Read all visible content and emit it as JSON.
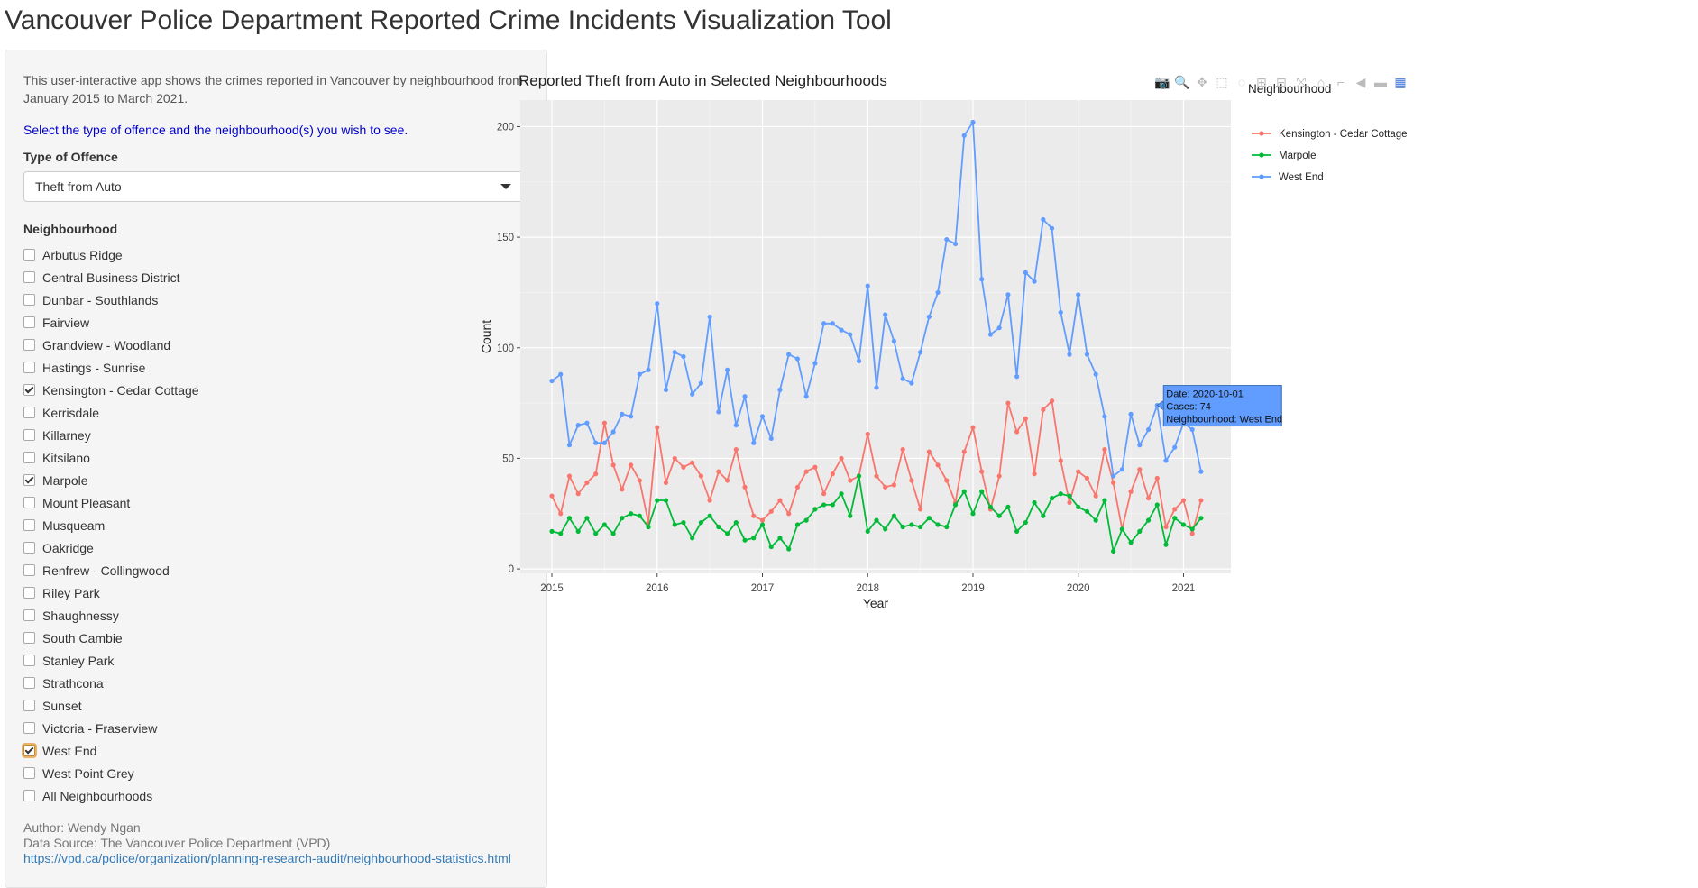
{
  "app": {
    "title": "Vancouver Police Department Reported Crime Incidents Visualization Tool"
  },
  "sidebar": {
    "intro": "This user-interactive app shows the crimes reported in Vancouver by neighbourhood from January 2015 to March 2021.",
    "select_prompt": "Select the type of offence and the neighbourhood(s) you wish to see.",
    "offence_label": "Type of Offence",
    "offence_value": "Theft from Auto",
    "neighbourhood_label": "Neighbourhood",
    "neighbourhoods": [
      {
        "label": "Arbutus Ridge",
        "checked": false
      },
      {
        "label": "Central Business District",
        "checked": false
      },
      {
        "label": "Dunbar - Southlands",
        "checked": false
      },
      {
        "label": "Fairview",
        "checked": false
      },
      {
        "label": "Grandview - Woodland",
        "checked": false
      },
      {
        "label": "Hastings - Sunrise",
        "checked": false
      },
      {
        "label": "Kensington - Cedar Cottage",
        "checked": true
      },
      {
        "label": "Kerrisdale",
        "checked": false
      },
      {
        "label": "Killarney",
        "checked": false
      },
      {
        "label": "Kitsilano",
        "checked": false
      },
      {
        "label": "Marpole",
        "checked": true
      },
      {
        "label": "Mount Pleasant",
        "checked": false
      },
      {
        "label": "Musqueam",
        "checked": false
      },
      {
        "label": "Oakridge",
        "checked": false
      },
      {
        "label": "Renfrew - Collingwood",
        "checked": false
      },
      {
        "label": "Riley Park",
        "checked": false
      },
      {
        "label": "Shaughnessy",
        "checked": false
      },
      {
        "label": "South Cambie",
        "checked": false
      },
      {
        "label": "Stanley Park",
        "checked": false
      },
      {
        "label": "Strathcona",
        "checked": false
      },
      {
        "label": "Sunset",
        "checked": false
      },
      {
        "label": "Victoria - Fraserview",
        "checked": false
      },
      {
        "label": "West End",
        "checked": true,
        "focused": true
      },
      {
        "label": "West Point Grey",
        "checked": false
      },
      {
        "label": "All Neighbourhoods",
        "checked": false
      }
    ],
    "author": "Author: Wendy Ngan",
    "source": "Data Source: The Vancouver Police Department (VPD)",
    "source_link": "https://vpd.ca/police/organization/planning-research-audit/neighbourhood-statistics.html"
  },
  "modebar": {
    "icons": [
      "camera-icon",
      "zoom-icon",
      "pan-icon",
      "box-select-icon",
      "lasso-icon",
      "zoom-in-icon",
      "zoom-out-icon",
      "autoscale-icon",
      "reset-axes-icon",
      "spike-lines-icon",
      "hover-closest-icon",
      "hover-compare-icon",
      "plotly-logo-icon"
    ]
  },
  "colors": {
    "kensington": "#F8766D",
    "marpole": "#00BA38",
    "westend": "#619CFF",
    "plot_bg": "#EBEBEB",
    "tooltip_bg": "#619CFF"
  },
  "chart_data": {
    "type": "line",
    "title": "Reported Theft from Auto in Selected Neighbourhoods",
    "xlabel": "Year",
    "ylabel": "Count",
    "x_start": "2015-01",
    "x_frequency": "monthly",
    "x_ticks": [
      "2015",
      "2016",
      "2017",
      "2018",
      "2019",
      "2020",
      "2021"
    ],
    "y_ticks": [
      0,
      50,
      100,
      150,
      200
    ],
    "ylim": [
      -2,
      212
    ],
    "grid": true,
    "legend_title": "Neighbourhood",
    "legend_position": "right",
    "series": [
      {
        "name": "Kensington - Cedar Cottage",
        "color": "#F8766D",
        "values": [
          33,
          25,
          42,
          34,
          39,
          43,
          66,
          47,
          36,
          47,
          40,
          21,
          64,
          39,
          50,
          46,
          48,
          42,
          31,
          44,
          40,
          54,
          37,
          24,
          22,
          26,
          31,
          25,
          37,
          44,
          46,
          34,
          43,
          50,
          40,
          42,
          61,
          42,
          37,
          38,
          54,
          40,
          27,
          53,
          47,
          40,
          30,
          53,
          64,
          44,
          27,
          42,
          75,
          62,
          68,
          43,
          72,
          76,
          49,
          30,
          44,
          41,
          33,
          54,
          39,
          18,
          35,
          45,
          32,
          41,
          19,
          27,
          31,
          16,
          31
        ]
      },
      {
        "name": "Marpole",
        "color": "#00BA38",
        "values": [
          17,
          16,
          23,
          17,
          23,
          16,
          20,
          16,
          23,
          25,
          24,
          19,
          31,
          31,
          20,
          21,
          14,
          21,
          24,
          19,
          16,
          21,
          13,
          14,
          20,
          10,
          14,
          9,
          20,
          22,
          27,
          29,
          29,
          34,
          24,
          42,
          17,
          22,
          18,
          24,
          19,
          20,
          19,
          23,
          20,
          19,
          29,
          35,
          25,
          35,
          28,
          24,
          28,
          17,
          21,
          30,
          24,
          32,
          34,
          33,
          28,
          26,
          22,
          31,
          8,
          18,
          12,
          17,
          22,
          29,
          11,
          23,
          20,
          18,
          23
        ]
      },
      {
        "name": "West End",
        "color": "#619CFF",
        "values": [
          85,
          88,
          56,
          65,
          66,
          57,
          57,
          62,
          70,
          69,
          88,
          90,
          120,
          81,
          98,
          96,
          79,
          84,
          114,
          71,
          90,
          65,
          78,
          57,
          69,
          59,
          81,
          97,
          95,
          78,
          93,
          111,
          111,
          108,
          106,
          94,
          128,
          82,
          115,
          103,
          86,
          84,
          98,
          114,
          125,
          149,
          147,
          196,
          202,
          131,
          106,
          109,
          124,
          87,
          134,
          130,
          158,
          154,
          116,
          97,
          124,
          97,
          88,
          69,
          42,
          45,
          70,
          56,
          63,
          74,
          49,
          55,
          66,
          63,
          44
        ]
      }
    ],
    "hover": {
      "date_label": "Date:",
      "date": "2020-10-01",
      "cases_label": "Cases:",
      "cases": "74",
      "neighbourhood_label": "Neighbourhood:",
      "neighbourhood": "West End"
    }
  }
}
